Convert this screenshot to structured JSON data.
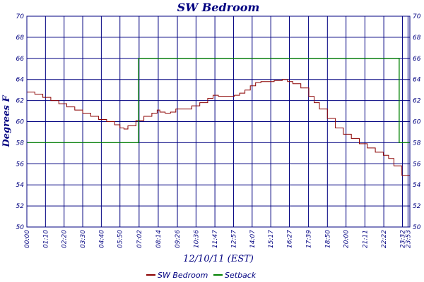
{
  "chart_data": {
    "type": "line",
    "title": "SW Bedroom",
    "ylabel": "Degrees F",
    "xlabel": "12/10/11 (EST)",
    "ylim": [
      50,
      70
    ],
    "yticks": [
      50,
      52,
      54,
      56,
      58,
      60,
      62,
      64,
      66,
      68,
      70
    ],
    "xlim": [
      0,
      1440
    ],
    "xtick_labels": [
      "00:00",
      "01:10",
      "02:20",
      "03:30",
      "04:40",
      "05:50",
      "07:02",
      "08:14",
      "09:26",
      "10:36",
      "11:47",
      "12:57",
      "14:07",
      "15:17",
      "16:27",
      "17:39",
      "18:50",
      "20:00",
      "21:11",
      "22:22",
      "23:32",
      "23:53"
    ],
    "xtick_minutes": [
      0,
      70,
      140,
      210,
      280,
      350,
      422,
      494,
      566,
      636,
      707,
      777,
      847,
      917,
      987,
      1059,
      1130,
      1200,
      1271,
      1342,
      1412,
      1433
    ],
    "grid": true,
    "legend_position": "bottom",
    "colors": {
      "grid": "#000080",
      "sw_bedroom": "#8b0000",
      "setback": "#008000",
      "text": "#000080"
    },
    "series": [
      {
        "name": "SW Bedroom",
        "color": "#8b0000",
        "x": [
          0,
          30,
          60,
          90,
          120,
          150,
          180,
          210,
          240,
          270,
          300,
          330,
          350,
          365,
          380,
          410,
          440,
          470,
          490,
          500,
          520,
          540,
          560,
          580,
          620,
          650,
          680,
          700,
          720,
          750,
          780,
          800,
          820,
          840,
          860,
          880,
          900,
          930,
          960,
          980,
          1000,
          1030,
          1060,
          1080,
          1100,
          1130,
          1160,
          1190,
          1220,
          1250,
          1280,
          1310,
          1340,
          1360,
          1380,
          1410,
          1440
        ],
        "y": [
          62.8,
          62.6,
          62.3,
          62.0,
          61.7,
          61.4,
          61.1,
          60.8,
          60.5,
          60.2,
          60.0,
          59.7,
          59.4,
          59.3,
          59.6,
          60.1,
          60.5,
          60.8,
          61.1,
          60.9,
          60.8,
          60.9,
          61.2,
          61.2,
          61.5,
          61.8,
          62.2,
          62.5,
          62.4,
          62.4,
          62.5,
          62.7,
          63.0,
          63.4,
          63.7,
          63.8,
          63.8,
          63.9,
          64.0,
          63.8,
          63.6,
          63.2,
          62.4,
          61.8,
          61.2,
          60.3,
          59.4,
          58.8,
          58.4,
          57.9,
          57.5,
          57.1,
          56.8,
          56.5,
          55.8,
          54.9,
          54.2
        ]
      },
      {
        "name": "Setback",
        "color": "#008000",
        "x": [
          0,
          420,
          420,
          1400,
          1400,
          1440
        ],
        "y": [
          58,
          58,
          66,
          66,
          58,
          58
        ]
      }
    ]
  }
}
